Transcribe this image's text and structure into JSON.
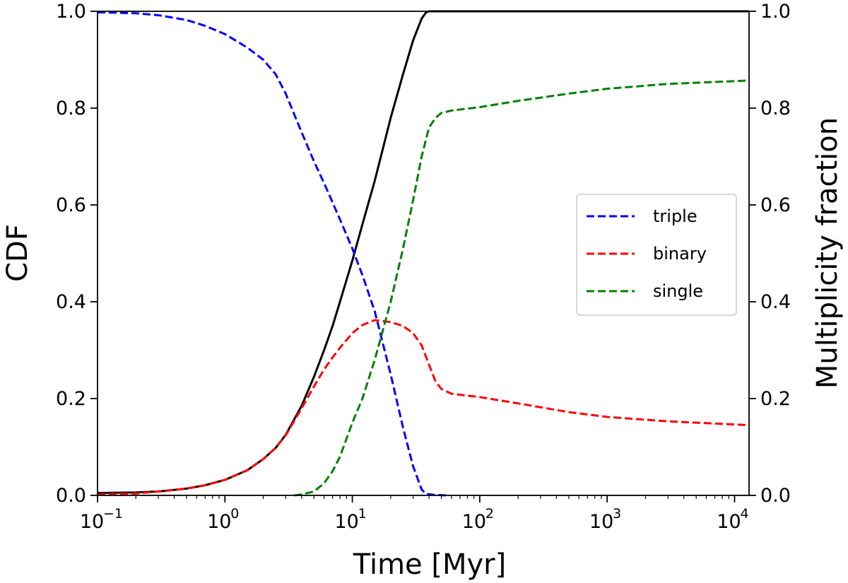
{
  "chart_data": {
    "type": "line",
    "title": "",
    "xlabel": "Time [Myr]",
    "ylabel": "CDF",
    "ylabel_right": "Multiplicity fraction",
    "xscale": "log",
    "xlim": [
      0.1,
      13000
    ],
    "ylim": [
      0,
      1
    ],
    "ylim_right": [
      0,
      1
    ],
    "x_ticks": [
      {
        "value": 0.1,
        "base": "10",
        "exp": "−1"
      },
      {
        "value": 1,
        "base": "10",
        "exp": "0"
      },
      {
        "value": 10,
        "base": "10",
        "exp": "1"
      },
      {
        "value": 100,
        "base": "10",
        "exp": "2"
      },
      {
        "value": 1000,
        "base": "10",
        "exp": "3"
      },
      {
        "value": 10000,
        "base": "10",
        "exp": "4"
      }
    ],
    "y_ticks": [
      "0.0",
      "0.2",
      "0.4",
      "0.6",
      "0.8",
      "1.0"
    ],
    "y_ticks_right": [
      "0.0",
      "0.2",
      "0.4",
      "0.6",
      "0.8",
      "1.0"
    ],
    "legend": {
      "placement": "center-right",
      "entries": [
        {
          "label": "triple",
          "color": "#0000ff",
          "style": "dashed"
        },
        {
          "label": "binary",
          "color": "#ff0000",
          "style": "dashed"
        },
        {
          "label": "single",
          "color": "#008000",
          "style": "dashed"
        }
      ]
    },
    "series": [
      {
        "name": "CDF",
        "axis": "left",
        "color": "#000000",
        "style": "solid",
        "in_legend": false,
        "x": [
          0.1,
          0.2,
          0.3,
          0.5,
          0.7,
          1.0,
          1.5,
          2.0,
          2.5,
          3.0,
          4.0,
          5.0,
          6.0,
          7.0,
          8.0,
          10.0,
          12.0,
          15.0,
          20.0,
          25.0,
          30.0,
          35.0,
          38.0,
          40.0,
          50.0,
          100.0,
          1000.0,
          13000.0
        ],
        "values": [
          0.005,
          0.006,
          0.008,
          0.014,
          0.021,
          0.032,
          0.052,
          0.075,
          0.098,
          0.125,
          0.185,
          0.245,
          0.3,
          0.35,
          0.4,
          0.485,
          0.56,
          0.65,
          0.78,
          0.87,
          0.94,
          0.985,
          0.998,
          1.0,
          1.0,
          1.0,
          1.0,
          1.0
        ]
      },
      {
        "name": "triple",
        "axis": "right",
        "color": "#0000ff",
        "style": "dashed",
        "in_legend": true,
        "x": [
          0.1,
          0.2,
          0.3,
          0.5,
          0.7,
          1.0,
          1.5,
          2.0,
          2.5,
          3.0,
          4.0,
          5.0,
          6.0,
          7.0,
          8.0,
          10.0,
          12.0,
          15.0,
          20.0,
          25.0,
          30.0,
          35.0,
          38.0,
          45.0,
          55.0
        ],
        "values": [
          0.998,
          0.996,
          0.992,
          0.982,
          0.97,
          0.953,
          0.925,
          0.9,
          0.87,
          0.83,
          0.75,
          0.69,
          0.645,
          0.605,
          0.57,
          0.51,
          0.455,
          0.38,
          0.25,
          0.14,
          0.06,
          0.012,
          0.003,
          0.001,
          0.0
        ]
      },
      {
        "name": "binary",
        "axis": "right",
        "color": "#ff0000",
        "style": "dashed",
        "in_legend": true,
        "x": [
          0.1,
          0.2,
          0.3,
          0.5,
          0.7,
          1.0,
          1.5,
          2.0,
          2.5,
          3.0,
          4.0,
          5.0,
          6.0,
          7.0,
          8.0,
          10.0,
          12.0,
          15.0,
          20.0,
          25.0,
          30.0,
          35.0,
          40.0,
          45.0,
          50.0,
          60.0,
          100.0,
          200.0,
          500.0,
          1000.0,
          3000.0,
          13000.0
        ],
        "values": [
          0.002,
          0.004,
          0.008,
          0.014,
          0.021,
          0.032,
          0.052,
          0.075,
          0.098,
          0.124,
          0.18,
          0.225,
          0.26,
          0.285,
          0.305,
          0.335,
          0.352,
          0.362,
          0.358,
          0.35,
          0.335,
          0.31,
          0.27,
          0.235,
          0.22,
          0.21,
          0.203,
          0.19,
          0.172,
          0.162,
          0.153,
          0.145
        ]
      },
      {
        "name": "single",
        "axis": "right",
        "color": "#008000",
        "style": "dashed",
        "in_legend": true,
        "x": [
          3.5,
          4.0,
          5.0,
          6.0,
          7.0,
          8.0,
          10.0,
          12.0,
          15.0,
          20.0,
          25.0,
          30.0,
          35.0,
          40.0,
          45.0,
          50.0,
          60.0,
          100.0,
          200.0,
          500.0,
          1000.0,
          3000.0,
          13000.0
        ],
        "values": [
          0.0,
          0.002,
          0.008,
          0.025,
          0.05,
          0.08,
          0.15,
          0.2,
          0.28,
          0.4,
          0.51,
          0.61,
          0.7,
          0.76,
          0.78,
          0.79,
          0.795,
          0.802,
          0.815,
          0.83,
          0.84,
          0.85,
          0.857
        ]
      }
    ]
  }
}
